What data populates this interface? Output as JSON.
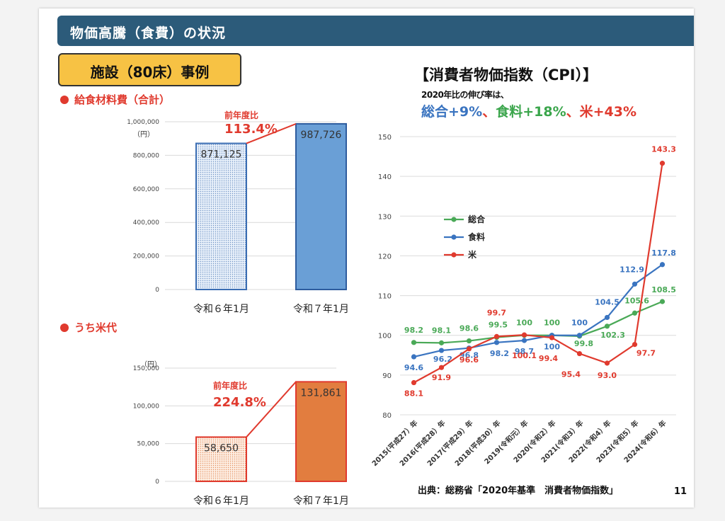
{
  "header": {
    "title": "物価高騰（食費）の状況"
  },
  "case": {
    "title": "施設（80床）事例"
  },
  "food_cost": {
    "heading": "給食材料費（合計）",
    "unit": "（円）",
    "ratio_label": "前年度比",
    "ratio_value": "113.4%"
  },
  "rice_cost": {
    "heading": "うち米代",
    "unit": "（円）",
    "ratio_label": "前年度比",
    "ratio_value": "224.8%"
  },
  "cpi": {
    "title": "【消費者物価指数（CPI）】",
    "subtitle": "2020年比の伸び率は、",
    "growth": [
      {
        "text": "総合+9%",
        "color": "#3a74c0"
      },
      {
        "text": "、",
        "color": "#e03a2e"
      },
      {
        "text": "食料+18%",
        "color": "#3aa54b"
      },
      {
        "text": "、",
        "color": "#e03a2e"
      },
      {
        "text": "米+43%",
        "color": "#e03a2e"
      }
    ]
  },
  "source": "出典：総務省「2020年基準　消費者物価指数」",
  "page_number": "11",
  "chart_data": [
    {
      "type": "bar",
      "categories": [
        "令和６年1月",
        "令和７年1月"
      ],
      "values": [
        871125,
        987726
      ],
      "value_labels": [
        "871,125",
        "987,726"
      ],
      "ylim": [
        0,
        1000000
      ],
      "yticks": [
        0,
        200000,
        400000,
        600000,
        800000,
        1000000
      ],
      "ytick_labels": [
        "0",
        "200,000",
        "400,000",
        "600,000",
        "800,000",
        "1,000,000"
      ],
      "colors": [
        "#dde8f5",
        "#6a9fd6"
      ],
      "grid": true
    },
    {
      "type": "bar",
      "categories": [
        "令和６年1月",
        "令和７年1月"
      ],
      "values": [
        58650,
        131861
      ],
      "value_labels": [
        "58,650",
        "131,861"
      ],
      "ylim": [
        0,
        150000
      ],
      "yticks": [
        0,
        50000,
        100000,
        150000
      ],
      "ytick_labels": [
        "0",
        "50,000",
        "100,000",
        "150,000"
      ],
      "colors": [
        "#fbe3d2",
        "#e27d3f"
      ],
      "grid": true
    },
    {
      "type": "line",
      "x": [
        "2015(平成27）年",
        "2016(平成28）年",
        "2017(平成29）年",
        "2018(平成30）年",
        "2019(令和元）年",
        "2020(令和2）年",
        "2021(令和3）年",
        "2022(令和4）年",
        "2023(令和5）年",
        "2024(令和6）年"
      ],
      "ylim": [
        80,
        150
      ],
      "yticks": [
        80,
        90,
        100,
        110,
        120,
        130,
        140,
        150
      ],
      "grid": true,
      "legend": "left",
      "series": [
        {
          "name": "総合",
          "color": "#4aa957",
          "values": [
            98.2,
            98.1,
            98.6,
            99.5,
            100,
            100,
            99.8,
            102.3,
            105.6,
            108.5
          ],
          "labels": [
            "98.2",
            "98.1",
            "98.6",
            "99.5",
            "100",
            "100",
            "99.8",
            "102.3",
            "105.6",
            "108.5"
          ]
        },
        {
          "name": "食料",
          "color": "#3a74c0",
          "values": [
            94.6,
            96.2,
            96.8,
            98.2,
            98.7,
            100,
            100,
            104.5,
            112.9,
            117.8
          ],
          "labels": [
            "94.6",
            "96.2",
            "96.8",
            "98.2",
            "98.7",
            "100",
            "100",
            "104.5",
            "112.9",
            "117.8"
          ]
        },
        {
          "name": "米",
          "color": "#e03a2e",
          "values": [
            88.1,
            91.9,
            96.6,
            99.7,
            100.1,
            99.4,
            95.4,
            93.0,
            97.7,
            143.3
          ],
          "labels": [
            "88.1",
            "91.9",
            "96.6",
            "99.7",
            "100.1",
            "99.4",
            "95.4",
            "93.0",
            "97.7",
            "143.3"
          ]
        }
      ]
    }
  ]
}
